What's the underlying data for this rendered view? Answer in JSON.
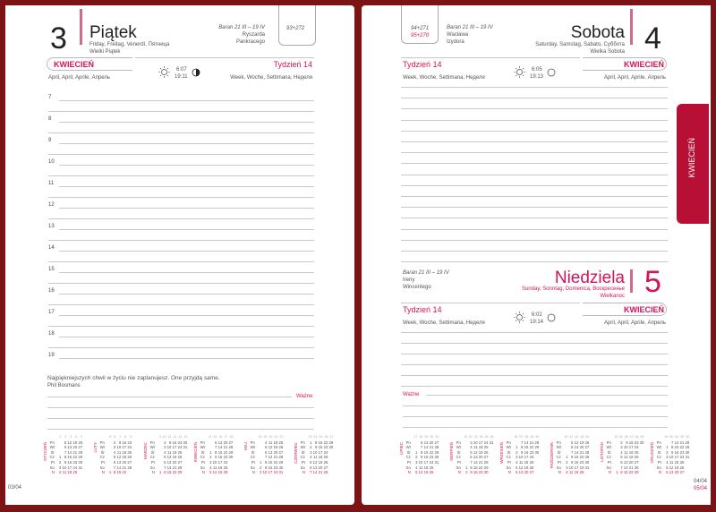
{
  "left": {
    "day_number": "3",
    "day_name": "Piątek",
    "day_translations": "Friday, Freitag, Venerdì, Пятница",
    "holiday": "Wielki Piątek",
    "zodiac": "Baran 21 III – 19 IV",
    "name_days": [
      "Ryszarda",
      "Pankracego"
    ],
    "day_count": "93+272",
    "month": "KWIECIEŃ",
    "month_translations": "April, April, Aprile, Апрель",
    "sunrise": "6:07",
    "sunset": "19:11",
    "week": "Tydzień 14",
    "week_translations": "Week, Woche, Settimana, Неделя",
    "hours": [
      "7",
      "8",
      "9",
      "10",
      "11",
      "12",
      "13",
      "14",
      "15",
      "16",
      "17",
      "18",
      "19"
    ],
    "quote": "Najpiękniejszych chwil w życiu nie zaplanujesz. One przyjdą same.",
    "quote_author": "Phil Bosmans",
    "important_label": "Ważne",
    "page_number": "03/04"
  },
  "right": {
    "saturday": {
      "day_number": "4",
      "day_name": "Sobota",
      "day_translations": "Saturday, Samstag, Sabato, Суббота",
      "holiday": "Wielka Sobota",
      "zodiac": "Baran 21 III – 19 IV",
      "name_days": [
        "Wacława",
        "Izydora"
      ],
      "day_count": "94+271",
      "day_count_sunday": "95+270",
      "week": "Tydzień 14",
      "week_translations": "Week, Woche, Settimana, Неделя",
      "sunrise": "6:05",
      "sunset": "19:13",
      "month": "KWIECIEŃ",
      "month_translations": "April, April, Aprile, Апрель"
    },
    "sunday": {
      "day_number": "5",
      "day_name": "Niedziela",
      "day_translations": "Sunday, Sonntag, Domenica, Воскресенье",
      "holiday": "Wielkanoc",
      "zodiac": "Baran 21 III – 19 IV",
      "name_days": [
        "Ireny",
        "Wincentego"
      ],
      "week": "Tydzień 14",
      "week_translations": "Week, Woche, Settimana, Неделя",
      "sunrise": "6:02",
      "sunset": "19:14",
      "month": "KWIECIEŃ",
      "month_translations": "April, April, Aprile, Апрель"
    },
    "important_label": "Ważne",
    "page_numbers": [
      "04/04",
      "05/04"
    ]
  },
  "tab": {
    "label": "KWIECIEŃ"
  },
  "colors": {
    "accent": "#d4145a",
    "border": "#7c1416",
    "tab": "#b80f36"
  },
  "weekdays": [
    "Pn",
    "Wt",
    "Śr",
    "Cz",
    "Pt",
    "So",
    "N"
  ],
  "calendar_left": [
    {
      "name": "STYCZEŃ",
      "weeks": [
        "1",
        "2",
        "3",
        "4",
        "5"
      ],
      "rows": [
        "_ 5 12 19 26",
        "_ 6 13 20 27",
        "_ 7 14 21 28",
        "1 8 15 22 29",
        "2 9 16 23 30",
        "3 10 17 24 31",
        "4 11 18 25 _"
      ]
    },
    {
      "name": "LUTY",
      "weeks": [
        "5",
        "6",
        "7",
        "8",
        "9"
      ],
      "rows": [
        "_ 2 9 16 23",
        "_ 3 10 17 24",
        "_ 4 11 18 25",
        "_ 5 12 19 26",
        "_ 6 13 20 27",
        "_ 7 14 21 28",
        "1 8 15 22 _"
      ]
    },
    {
      "name": "MARZEC",
      "weeks": [
        "9",
        "10",
        "11",
        "12",
        "13",
        "14"
      ],
      "rows": [
        "_ 2 9 16 23 30",
        "_ 3 10 17 24 31",
        "_ 4 11 18 25 _",
        "_ 5 12 19 26 _",
        "_ 6 13 20 27 _",
        "_ 7 14 21 28 _",
        "1 8 15 22 29 _"
      ]
    },
    {
      "name": "KWIECIEŃ",
      "weeks": [
        "14",
        "15",
        "16",
        "17",
        "18"
      ],
      "rows": [
        "_ 6 13 20 27",
        "_ 7 14 21 28",
        "1 8 15 22 29",
        "2 9 16 23 30",
        "3 10 17 24 _",
        "4 11 18 25 _",
        "5 12 19 26 _"
      ]
    },
    {
      "name": "MAJ",
      "weeks": [
        "18",
        "19",
        "20",
        "21",
        "22"
      ],
      "rows": [
        "_ 4 11 18 25",
        "_ 5 12 19 26",
        "_ 6 13 20 27",
        "_ 7 14 21 28",
        "1 8 15 22 29",
        "2 9 16 23 30",
        "3 10 17 24 31"
      ]
    },
    {
      "name": "CZERWIEC",
      "weeks": [
        "23",
        "24",
        "25",
        "26",
        "27"
      ],
      "rows": [
        "1 8 15 22 29",
        "2 9 16 23 30",
        "3 10 17 24 _",
        "4 11 18 25 _",
        "5 12 19 26 _",
        "6 13 20 27 _",
        "7 14 21 28 _"
      ]
    }
  ],
  "calendar_right": [
    {
      "name": "LIPIEC",
      "weeks": [
        "27",
        "28",
        "29",
        "30",
        "31"
      ],
      "rows": [
        "_ 6 13 20 27",
        "_ 7 14 21 28",
        "1 8 15 22 29",
        "2 9 16 23 30",
        "3 10 17 24 31",
        "4 11 18 25 _",
        "5 12 19 26 _"
      ]
    },
    {
      "name": "SIERPIEŃ",
      "weeks": [
        "31",
        "32",
        "33",
        "34",
        "35",
        "36"
      ],
      "rows": [
        "_ 3 10 17 24 31",
        "_ 4 11 18 25 _",
        "_ 5 12 19 26 _",
        "_ 6 13 20 27 _",
        "_ 7 14 21 28 _",
        "1 8 15 22 29 _",
        "2 9 16 23 30 _"
      ]
    },
    {
      "name": "WRZESIEŃ",
      "weeks": [
        "36",
        "37",
        "38",
        "39",
        "40"
      ],
      "rows": [
        "_ 7 14 21 28",
        "1 8 15 22 29",
        "2 9 16 23 30",
        "3 10 17 24 _",
        "4 11 18 25 _",
        "5 12 19 26 _",
        "6 13 20 27 _"
      ]
    },
    {
      "name": "PAŹDZIERNIK",
      "weeks": [
        "40",
        "41",
        "42",
        "43",
        "44"
      ],
      "rows": [
        "_ 5 12 19 26",
        "_ 6 13 20 27",
        "_ 7 14 21 28",
        "1 8 15 22 29",
        "2 9 16 23 30",
        "3 10 17 24 31",
        "4 11 18 25 _"
      ]
    },
    {
      "name": "LISTOPAD",
      "weeks": [
        "44",
        "45",
        "46",
        "47",
        "48",
        "49"
      ],
      "rows": [
        "_ 2 9 16 23 30",
        "_ 3 10 17 24 _",
        "_ 4 11 18 25 _",
        "_ 5 12 19 26 _",
        "_ 6 13 20 27 _",
        "_ 7 14 21 28 _",
        "1 8 15 22 29 _"
      ]
    },
    {
      "name": "GRUDZIEŃ",
      "weeks": [
        "49",
        "50",
        "51",
        "52",
        "53"
      ],
      "rows": [
        "_ 7 14 21 28",
        "1 8 15 22 29",
        "2 9 16 23 30",
        "3 10 17 24 31",
        "4 11 18 25 _",
        "5 12 19 26 _",
        "6 13 20 27 _"
      ]
    }
  ]
}
